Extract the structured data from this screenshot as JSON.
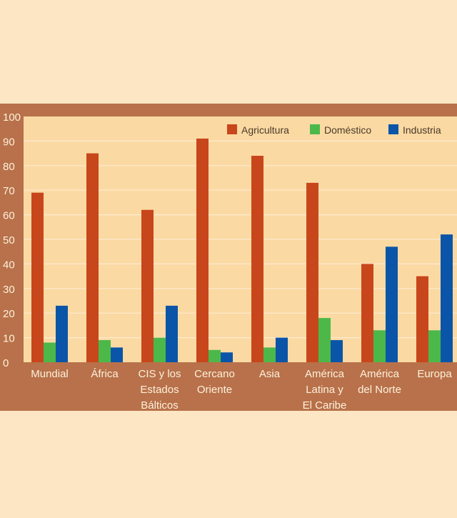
{
  "colors": {
    "page_background": "#fde6c4",
    "frame": "#b8714a",
    "plot_background": "#fbd9a3",
    "grid": "#fdebd0",
    "label_text": "#fdf1dc",
    "legend_text": "#4a3a2a"
  },
  "chart_data": {
    "type": "bar",
    "title": "",
    "xlabel": "",
    "ylabel": "",
    "ylim": [
      0,
      100
    ],
    "yticks": [
      0,
      10,
      20,
      30,
      40,
      50,
      60,
      70,
      80,
      90,
      100
    ],
    "grid": true,
    "legend_position": "top-right",
    "categories": [
      [
        "Mundial"
      ],
      [
        "África"
      ],
      [
        "CIS y los",
        "Estados",
        "Bálticos"
      ],
      [
        "Cercano",
        "Oriente"
      ],
      [
        "Asia"
      ],
      [
        "América",
        "Latina y",
        "El Caribe"
      ],
      [
        "América",
        "del Norte"
      ],
      [
        "Europa"
      ]
    ],
    "series": [
      {
        "name": "Agricultura",
        "color": "#c8461b",
        "values": [
          69,
          85,
          62,
          91,
          84,
          73,
          40,
          35
        ]
      },
      {
        "name": "Doméstico",
        "color": "#4cb84a",
        "values": [
          8,
          9,
          10,
          5,
          6,
          18,
          13,
          13
        ]
      },
      {
        "name": "Industria",
        "color": "#0a55a8",
        "values": [
          23,
          6,
          23,
          4,
          10,
          9,
          47,
          52
        ]
      }
    ]
  }
}
